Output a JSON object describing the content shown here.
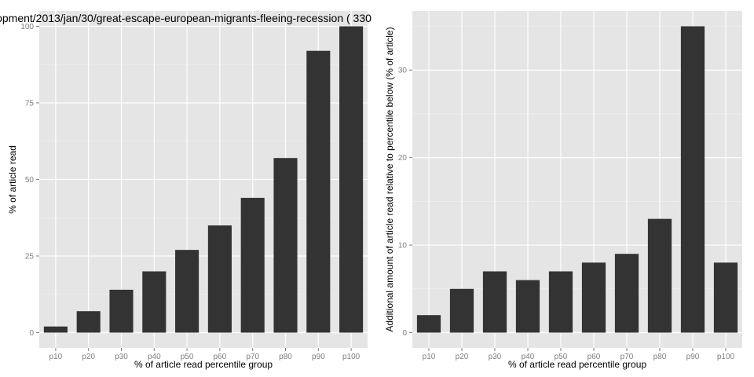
{
  "chart_data": [
    {
      "type": "bar",
      "title": "opment/2013/jan/30/great-escape-european-migrants-fleeing-recession ( 330",
      "xlabel": "% of article read percentile group",
      "ylabel": "% of article read",
      "categories": [
        "p10",
        "p20",
        "p30",
        "p40",
        "p50",
        "p60",
        "p70",
        "p80",
        "p90",
        "p100"
      ],
      "values": [
        2,
        7,
        14,
        20,
        27,
        35,
        44,
        57,
        92,
        100
      ],
      "ylim": [
        -5,
        105
      ],
      "yticks": [
        0,
        25,
        50,
        75,
        100
      ],
      "grid": true,
      "bar_color": "#333333",
      "panel_color": "#e5e5e5"
    },
    {
      "type": "bar",
      "title": "",
      "xlabel": "% of article read percentile group",
      "ylabel": "Additional amount of article read relative to percentile below (% of article)",
      "categories": [
        "p10",
        "p20",
        "p30",
        "p40",
        "p50",
        "p60",
        "p70",
        "p80",
        "p90",
        "p100"
      ],
      "values": [
        2,
        5,
        7,
        6,
        7,
        8,
        9,
        13,
        35,
        8
      ],
      "ylim": [
        -1.75,
        36.75
      ],
      "yticks": [
        0,
        10,
        20,
        30
      ],
      "grid": true,
      "bar_color": "#333333",
      "panel_color": "#e5e5e5"
    }
  ]
}
